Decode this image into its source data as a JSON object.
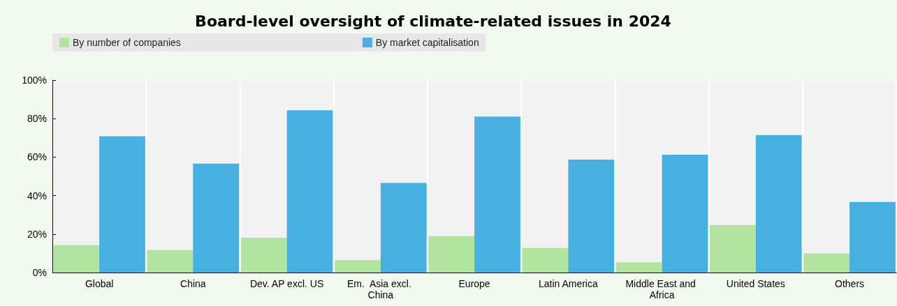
{
  "chart_data": {
    "type": "bar",
    "title": "Board-level oversight of climate-related issues in 2024",
    "categories": [
      "Global",
      "China",
      "Dev. AP excl. US",
      "Em.  Asia excl. China",
      "Europe",
      "Latin America",
      "Middle East and Africa",
      "United States",
      "Others"
    ],
    "series": [
      {
        "name": "By number of companies",
        "color": "#b3e3a0",
        "values": [
          14.2,
          11.7,
          18.1,
          6.4,
          18.9,
          12.8,
          5.3,
          24.6,
          10.0
        ]
      },
      {
        "name": "By market capitalisation",
        "color": "#47b0e0",
        "values": [
          70.8,
          56.6,
          84.3,
          46.6,
          81.1,
          58.7,
          61.2,
          71.5,
          36.7
        ]
      }
    ],
    "ylim": [
      0,
      100
    ],
    "yticks": [
      {
        "value": 0,
        "label": "0%"
      },
      {
        "value": 20,
        "label": "20%"
      },
      {
        "value": 40,
        "label": "40%"
      },
      {
        "value": 60,
        "label": "60%"
      },
      {
        "value": 80,
        "label": "80%"
      },
      {
        "value": 100,
        "label": "100%"
      }
    ],
    "grid": "x",
    "legend": "top"
  }
}
